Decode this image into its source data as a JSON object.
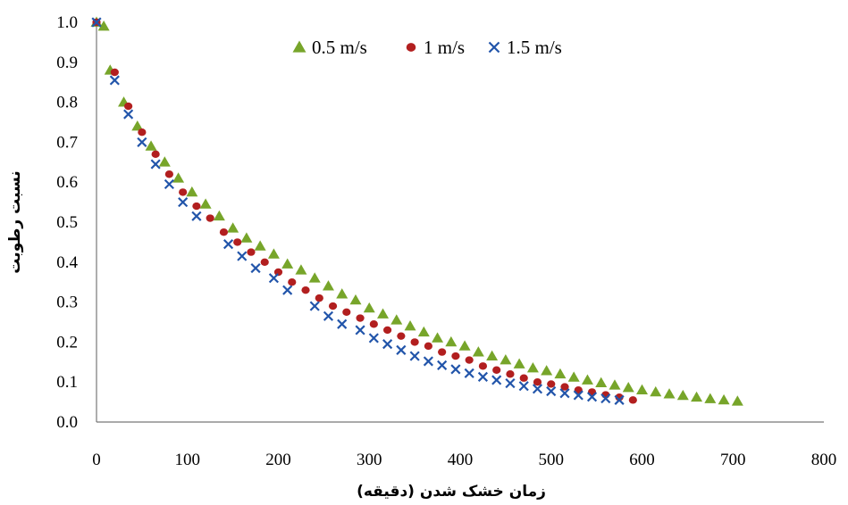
{
  "chart_data": {
    "type": "scatter",
    "xlabel": "زمان خشک شدن (دقیقه)",
    "ylabel": "نسبت رطوبت",
    "xlim": [
      0,
      800
    ],
    "ylim": [
      0,
      1.0
    ],
    "x_ticks": [
      "0",
      "100",
      "200",
      "300",
      "400",
      "500",
      "600",
      "700",
      "800"
    ],
    "y_ticks": [
      "0.0",
      "0.1",
      "0.2",
      "0.3",
      "0.4",
      "0.5",
      "0.6",
      "0.7",
      "0.8",
      "0.9",
      "1.0"
    ],
    "grid": false,
    "legend_position": "top",
    "series": [
      {
        "name": "0.5 m/s",
        "marker": "triangle",
        "color": "#77a52a",
        "x": [
          0,
          8,
          15,
          30,
          45,
          60,
          75,
          90,
          105,
          120,
          135,
          150,
          165,
          180,
          195,
          210,
          225,
          240,
          255,
          270,
          285,
          300,
          315,
          330,
          345,
          360,
          375,
          390,
          405,
          420,
          435,
          450,
          465,
          480,
          495,
          510,
          525,
          540,
          555,
          570,
          585,
          600,
          615,
          630,
          645,
          660,
          675,
          690,
          705
        ],
        "y": [
          1.0,
          0.99,
          0.88,
          0.8,
          0.74,
          0.69,
          0.65,
          0.61,
          0.575,
          0.545,
          0.515,
          0.485,
          0.46,
          0.44,
          0.42,
          0.395,
          0.38,
          0.36,
          0.34,
          0.32,
          0.305,
          0.285,
          0.27,
          0.255,
          0.24,
          0.225,
          0.21,
          0.2,
          0.19,
          0.175,
          0.165,
          0.155,
          0.145,
          0.135,
          0.128,
          0.12,
          0.112,
          0.105,
          0.098,
          0.092,
          0.086,
          0.08,
          0.075,
          0.07,
          0.066,
          0.062,
          0.058,
          0.055,
          0.052
        ]
      },
      {
        "name": "1 m/s",
        "marker": "circle",
        "color": "#b21f1f",
        "x": [
          0,
          20,
          35,
          50,
          65,
          80,
          95,
          110,
          125,
          140,
          155,
          170,
          185,
          200,
          215,
          230,
          245,
          260,
          275,
          290,
          305,
          320,
          335,
          350,
          365,
          380,
          395,
          410,
          425,
          440,
          455,
          470,
          485,
          500,
          515,
          530,
          545,
          560,
          575,
          590
        ],
        "y": [
          1.0,
          0.875,
          0.79,
          0.725,
          0.67,
          0.62,
          0.575,
          0.54,
          0.51,
          0.475,
          0.45,
          0.425,
          0.4,
          0.375,
          0.35,
          0.33,
          0.31,
          0.29,
          0.275,
          0.26,
          0.245,
          0.23,
          0.215,
          0.2,
          0.19,
          0.175,
          0.165,
          0.155,
          0.14,
          0.13,
          0.12,
          0.11,
          0.1,
          0.095,
          0.088,
          0.08,
          0.075,
          0.068,
          0.062,
          0.055
        ]
      },
      {
        "name": "1.5 m/s",
        "marker": "cross",
        "color": "#2255aa",
        "x": [
          0,
          20,
          35,
          50,
          65,
          80,
          95,
          110,
          145,
          160,
          175,
          195,
          210,
          240,
          255,
          270,
          290,
          305,
          320,
          335,
          350,
          365,
          380,
          395,
          410,
          425,
          440,
          455,
          470,
          485,
          500,
          515,
          530,
          545,
          560,
          575
        ],
        "y": [
          1.0,
          0.855,
          0.77,
          0.7,
          0.645,
          0.595,
          0.55,
          0.515,
          0.445,
          0.415,
          0.385,
          0.36,
          0.33,
          0.29,
          0.265,
          0.245,
          0.23,
          0.21,
          0.195,
          0.18,
          0.165,
          0.152,
          0.142,
          0.132,
          0.122,
          0.113,
          0.105,
          0.097,
          0.09,
          0.083,
          0.077,
          0.072,
          0.067,
          0.063,
          0.059,
          0.055
        ]
      }
    ]
  }
}
